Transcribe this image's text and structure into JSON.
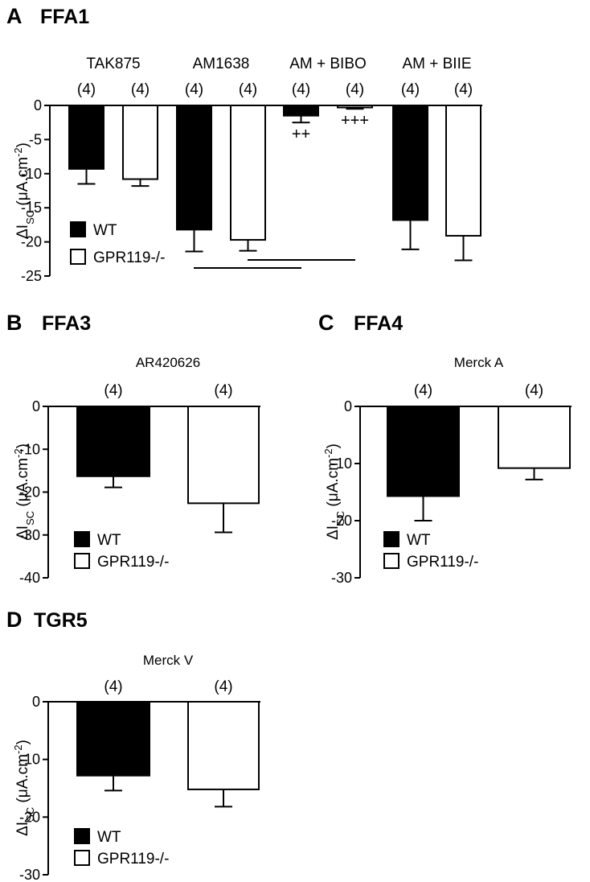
{
  "chart_data": [
    {
      "type": "bar",
      "panel_label": "A",
      "title": "FFA1",
      "ylabel": "ΔI",
      "ylabel_sub": "SC",
      "ylabel_unit": " (μA.cm",
      "ylabel_sup": "-2",
      "ylabel_close": ")",
      "ylim": [
        -25,
        0
      ],
      "yticks": [
        0,
        -5,
        -10,
        -15,
        -20,
        -25
      ],
      "categories": [
        "TAK875",
        "AM1638",
        "AM + BIBO",
        "AM + BIIE"
      ],
      "series": [
        {
          "name": "WT",
          "fill": "#000000",
          "values": [
            -9.3,
            -18.2,
            -1.5,
            -16.8
          ],
          "errors": [
            2.2,
            3.2,
            1.0,
            4.3
          ],
          "n": [
            "(4)",
            "(4)",
            "(4)",
            "(4)"
          ],
          "sig": [
            "",
            "",
            "++",
            ""
          ]
        },
        {
          "name": "GPR119-/-",
          "fill": "#ffffff",
          "values": [
            -10.8,
            -19.7,
            -0.3,
            -19.1
          ],
          "errors": [
            1.0,
            1.6,
            0.2,
            3.6
          ],
          "n": [
            "(4)",
            "(4)",
            "(4)",
            "(4)"
          ],
          "sig": [
            "",
            "",
            "+++",
            ""
          ]
        }
      ],
      "comparison_lines": [
        {
          "from": "AM1638 WT",
          "to": "AM + BIBO WT"
        },
        {
          "from": "AM1638 GPR119-/-",
          "to": "AM + BIBO GPR119-/-"
        }
      ],
      "legend": "bottom-left"
    },
    {
      "type": "bar",
      "panel_label": "B",
      "title": "FFA3",
      "ylabel": "ΔI",
      "ylabel_sub": "SC",
      "ylabel_unit": " (μA.cm",
      "ylabel_sup": "-2",
      "ylabel_close": ")",
      "ylim": [
        -40,
        0
      ],
      "yticks": [
        0,
        -10,
        -20,
        -30,
        -40
      ],
      "categories": [
        "AR420626"
      ],
      "series": [
        {
          "name": "WT",
          "fill": "#000000",
          "values": [
            -16.3
          ],
          "errors": [
            2.6
          ],
          "n": [
            "(4)"
          ]
        },
        {
          "name": "GPR119-/-",
          "fill": "#ffffff",
          "values": [
            -22.6
          ],
          "errors": [
            6.8
          ],
          "n": [
            "(4)"
          ]
        }
      ],
      "legend": "bottom-left"
    },
    {
      "type": "bar",
      "panel_label": "C",
      "title": "FFA4",
      "ylabel": "ΔI",
      "ylabel_sub": "SC",
      "ylabel_unit": " (μA.cm",
      "ylabel_sup": "-2",
      "ylabel_close": ")",
      "ylim": [
        -30,
        0
      ],
      "yticks": [
        0,
        -10,
        -20,
        -30
      ],
      "categories": [
        "Merck A"
      ],
      "series": [
        {
          "name": "WT",
          "fill": "#000000",
          "values": [
            -15.7
          ],
          "errors": [
            4.3
          ],
          "n": [
            "(4)"
          ]
        },
        {
          "name": "GPR119-/-",
          "fill": "#ffffff",
          "values": [
            -10.8
          ],
          "errors": [
            2.0
          ],
          "n": [
            "(4)"
          ]
        }
      ],
      "legend": "bottom-left"
    },
    {
      "type": "bar",
      "panel_label": "D",
      "title": "TGR5",
      "ylabel": "ΔI",
      "ylabel_sub": "SC",
      "ylabel_unit": " (μA.cm",
      "ylabel_sup": "-2",
      "ylabel_close": ")",
      "ylim": [
        -30,
        0
      ],
      "yticks": [
        0,
        -10,
        -20,
        -30
      ],
      "categories": [
        "Merck V"
      ],
      "series": [
        {
          "name": "WT",
          "fill": "#000000",
          "values": [
            -12.8
          ],
          "errors": [
            2.6
          ],
          "n": [
            "(4)"
          ]
        },
        {
          "name": "GPR119-/-",
          "fill": "#ffffff",
          "values": [
            -15.2
          ],
          "errors": [
            3.0
          ],
          "n": [
            "(4)"
          ]
        }
      ],
      "legend": "bottom-left"
    }
  ]
}
